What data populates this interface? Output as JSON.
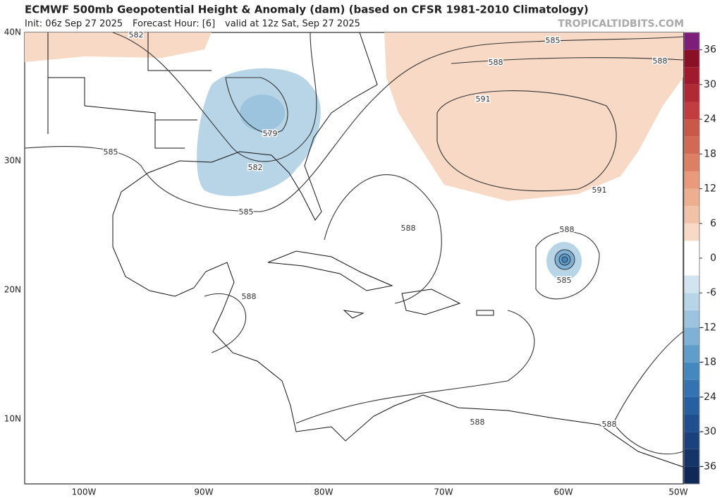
{
  "header": {
    "title": "ECMWF 500mb Geopotential Height & Anomaly (dam) (based on CFSR 1981-2010 Climatology)",
    "init": "Init: 06z Sep 27 2025",
    "forecast": "Forecast Hour: [6]",
    "valid": "valid at 12z Sat, Sep 27 2025",
    "watermark": "TROPICALTIDBITS.COM"
  },
  "map": {
    "lat_labels": [
      "40N",
      "30N",
      "20N",
      "10N"
    ],
    "lon_labels": [
      "100W",
      "90W",
      "80W",
      "70W",
      "60W",
      "50W"
    ],
    "contour_labels": [
      "582",
      "585",
      "588",
      "588",
      "591",
      "579",
      "585",
      "582",
      "591",
      "585",
      "588",
      "588",
      "585",
      "588",
      "588",
      "588"
    ]
  },
  "colorbar": {
    "levels": [
      -39,
      -36,
      -33,
      -30,
      -27,
      -24,
      -21,
      -18,
      -15,
      -12,
      -9,
      -6,
      -3,
      3,
      6,
      9,
      12,
      15,
      18,
      21,
      24,
      27,
      30,
      33,
      36,
      39
    ],
    "colors": [
      "#102858",
      "#153468",
      "#1a417c",
      "#1f4f8e",
      "#27609f",
      "#3273b0",
      "#4388bf",
      "#5f9dcb",
      "#7eb1d5",
      "#9cc4df",
      "#b8d5e8",
      "#d2e4ef",
      "#ffffff",
      "#f8d9c6",
      "#f2c2a8",
      "#eeaf90",
      "#e89a7a",
      "#dc7f63",
      "#d06a55",
      "#c85848",
      "#c03c3e",
      "#b02a35",
      "#9e1a2c",
      "#8a1026",
      "#7b1f7a"
    ],
    "ticks": [
      36,
      30,
      24,
      18,
      12,
      6,
      0,
      -6,
      -12,
      -18,
      -24,
      -30,
      -36
    ]
  }
}
